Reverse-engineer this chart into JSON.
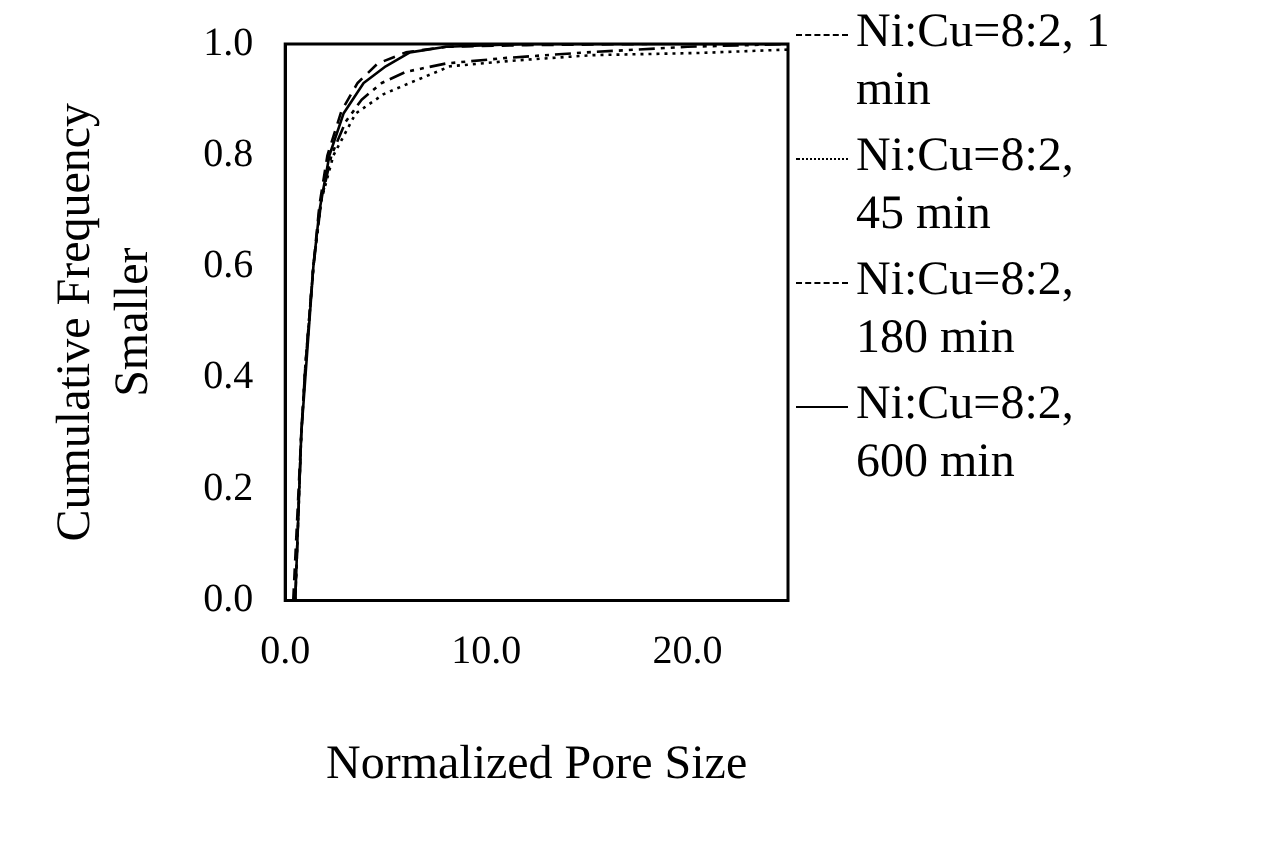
{
  "chart_data": {
    "type": "line",
    "xlabel": "Normalized Pore Size",
    "ylabel": "Cumulative Frequency Smaller",
    "xlim": [
      0,
      25
    ],
    "xticks": [
      {
        "value": 0,
        "label": "0.0"
      },
      {
        "value": 10,
        "label": "10.0"
      },
      {
        "value": 20,
        "label": "20.0"
      }
    ],
    "ylim": [
      0,
      1
    ],
    "yticks": [
      {
        "value": 0,
        "label": "0.0"
      },
      {
        "value": 0.2,
        "label": "0.2"
      },
      {
        "value": 0.4,
        "label": "0.4"
      },
      {
        "value": 0.6,
        "label": "0.6"
      },
      {
        "value": 0.8,
        "label": "0.8"
      },
      {
        "value": 1,
        "label": "1.0"
      }
    ],
    "grid": false,
    "legend": "right",
    "marker": "none",
    "series": [
      {
        "name": "Ni:Cu=8:2, 1 min",
        "color": "#000000",
        "line_style": "dashdot",
        "x": [
          0.5,
          0.8,
          1.0,
          1.4,
          1.8,
          2.3,
          3.0,
          3.8,
          4.8,
          6.0,
          8.0,
          11.0,
          15.0,
          20.0,
          25.0
        ],
        "values": [
          0,
          0.3,
          0.42,
          0.6,
          0.72,
          0.8,
          0.86,
          0.9,
          0.93,
          0.95,
          0.965,
          0.975,
          0.985,
          0.995,
          1.0
        ]
      },
      {
        "name": "Ni:Cu=8:2, 45 min",
        "color": "#000000",
        "line_style": "dotted",
        "x": [
          0.5,
          0.8,
          1.0,
          1.4,
          1.8,
          2.4,
          3.5,
          4.9,
          6.2,
          8.2,
          11.3,
          15.3,
          20.7,
          25.0
        ],
        "values": [
          0,
          0.3,
          0.42,
          0.6,
          0.72,
          0.8,
          0.875,
          0.91,
          0.93,
          0.96,
          0.97,
          0.98,
          0.984,
          0.99
        ]
      },
      {
        "name": "Ni:Cu=8:2, 180 min",
        "color": "#000000",
        "line_style": "dashed",
        "x": [
          0.4,
          0.8,
          1.0,
          1.4,
          1.7,
          2.1,
          2.8,
          3.6,
          4.6,
          6.0,
          8.0,
          12.0,
          18.0
        ],
        "values": [
          0,
          0.3,
          0.42,
          0.6,
          0.71,
          0.8,
          0.88,
          0.93,
          0.965,
          0.985,
          0.995,
          0.998,
          1.0
        ]
      },
      {
        "name": "Ni:Cu=8:2, 600 min",
        "color": "#000000",
        "line_style": "solid",
        "x": [
          0.5,
          0.8,
          1.0,
          1.4,
          1.7,
          2.2,
          2.9,
          3.9,
          5.0,
          6.2,
          8.0,
          12.0,
          25.0
        ],
        "values": [
          0,
          0.3,
          0.4,
          0.6,
          0.7,
          0.8,
          0.875,
          0.93,
          0.96,
          0.985,
          0.995,
          1.0,
          1.0
        ]
      }
    ]
  }
}
